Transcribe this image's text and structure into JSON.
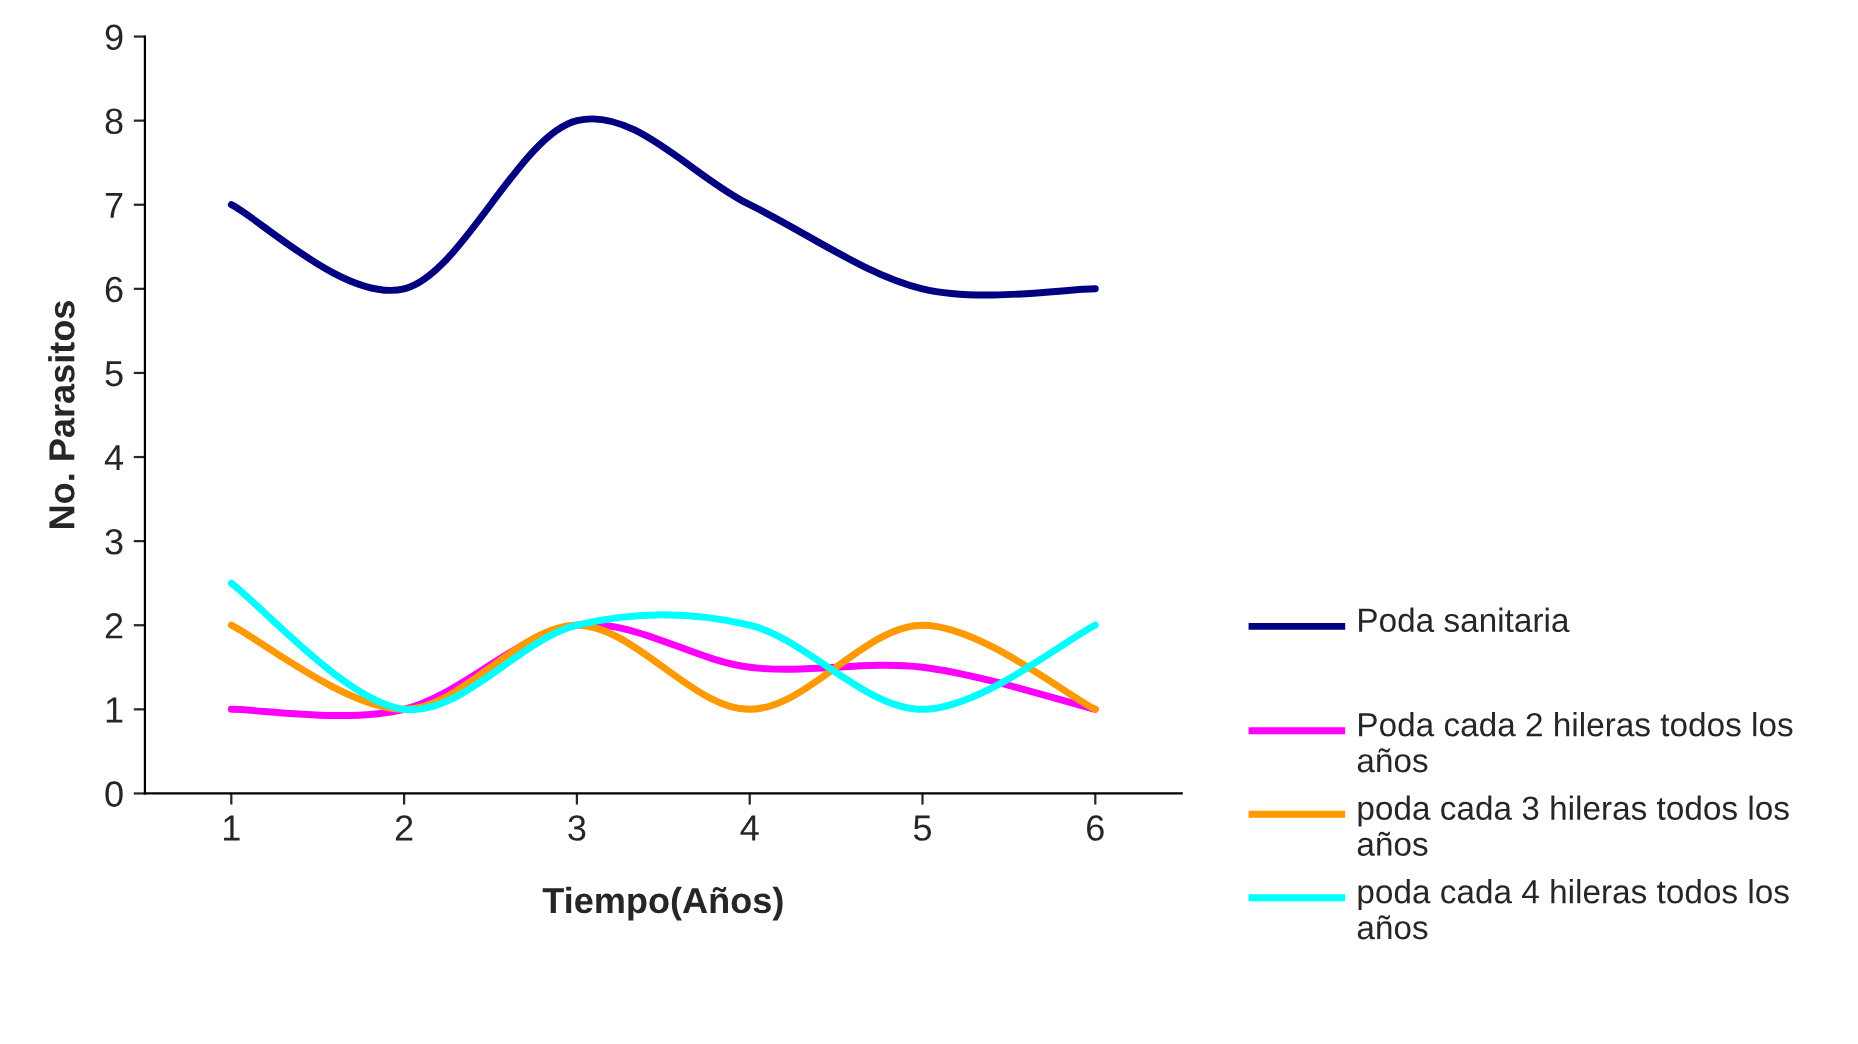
{
  "chart_data": {
    "type": "line",
    "xlabel": "Tiempo(Años)",
    "ylabel": "No. Parasitos",
    "categories": [
      "1",
      "2",
      "3",
      "4",
      "5",
      "6"
    ],
    "series": [
      {
        "name": "Poda sanitaria",
        "color": "#000080",
        "values": [
          7,
          6,
          8,
          7,
          6,
          6
        ]
      },
      {
        "name": "Poda cada 2 hileras todos los años",
        "color": "#ff00ff",
        "values": [
          1,
          1,
          2,
          1.5,
          1.5,
          1
        ]
      },
      {
        "name": "poda cada 3 hileras todos los años",
        "color": "#ff9900",
        "values": [
          2,
          1,
          2,
          1,
          2,
          1
        ]
      },
      {
        "name": "poda cada 4 hileras todos los años",
        "color": "#00ffff",
        "values": [
          2.5,
          1,
          2,
          2,
          1,
          2
        ]
      }
    ],
    "ylim": [
      0,
      9
    ],
    "yticks": [
      0,
      1,
      2,
      3,
      4,
      5,
      6,
      7,
      8,
      9
    ],
    "grid": false,
    "legend": "right",
    "marker": "none",
    "line_style": "solid"
  }
}
